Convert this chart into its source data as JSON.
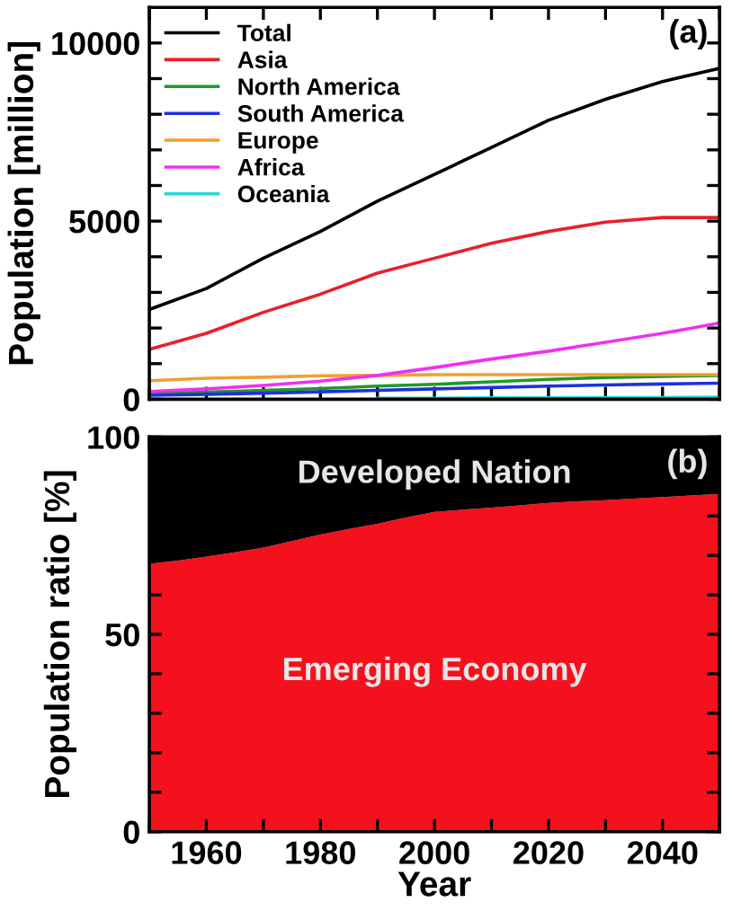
{
  "chart_data": [
    {
      "type": "line",
      "ylabel": "Population [million]",
      "annotations": [
        "(a)"
      ],
      "x": [
        1950,
        1960,
        1970,
        1980,
        1990,
        2000,
        2010,
        2020,
        2030,
        2040,
        2050
      ],
      "series": [
        {
          "name": "Total",
          "color": "#000000",
          "values": [
            2520,
            3110,
            3960,
            4710,
            5560,
            6310,
            7070,
            7830,
            8420,
            8920,
            9290
          ]
        },
        {
          "name": "Asia",
          "color": "#e8202a",
          "values": [
            1400,
            1850,
            2440,
            2950,
            3540,
            3960,
            4380,
            4710,
            4970,
            5100,
            5100
          ]
        },
        {
          "name": "North America",
          "color": "#1e9a2c",
          "values": [
            170,
            200,
            250,
            300,
            370,
            420,
            490,
            560,
            610,
            640,
            670
          ]
        },
        {
          "name": "South America",
          "color": "#1f2fe0",
          "values": [
            110,
            140,
            170,
            210,
            250,
            290,
            330,
            370,
            400,
            430,
            450
          ]
        },
        {
          "name": "Europe",
          "color": "#f0a030",
          "values": [
            520,
            590,
            620,
            660,
            670,
            690,
            690,
            690,
            690,
            690,
            690
          ]
        },
        {
          "name": "Africa",
          "color": "#f030f0",
          "values": [
            220,
            290,
            390,
            510,
            670,
            890,
            1130,
            1350,
            1600,
            1850,
            2140
          ]
        },
        {
          "name": "Oceania",
          "color": "#20d8d8",
          "values": [
            null,
            null,
            null,
            null,
            30,
            30,
            40,
            40,
            50,
            50,
            60
          ]
        }
      ],
      "xlim": [
        1950,
        2050
      ],
      "ylim": [
        0,
        11000
      ],
      "xticks": [
        {
          "value": 1950,
          "label": null
        },
        {
          "value": 1960,
          "label": null
        },
        {
          "value": 1970,
          "label": null
        },
        {
          "value": 1980,
          "label": null
        },
        {
          "value": 1990,
          "label": null
        },
        {
          "value": 2000,
          "label": null
        },
        {
          "value": 2010,
          "label": null
        },
        {
          "value": 2020,
          "label": null
        },
        {
          "value": 2030,
          "label": null
        },
        {
          "value": 2040,
          "label": null
        },
        {
          "value": 2050,
          "label": null
        }
      ],
      "yticks": [
        0,
        {
          "value": 1000,
          "label": null
        },
        {
          "value": 2000,
          "label": null
        },
        {
          "value": 3000,
          "label": null
        },
        {
          "value": 4000,
          "label": null
        },
        5000,
        {
          "value": 6000,
          "label": null
        },
        {
          "value": 7000,
          "label": null
        },
        {
          "value": 8000,
          "label": null
        },
        {
          "value": 9000,
          "label": null
        },
        10000
      ],
      "tick_labels": "y",
      "legend": "top left",
      "grid": false
    },
    {
      "type": "area",
      "stacked": true,
      "xlabel": "Year",
      "ylabel": "Population ratio [%]",
      "annotations": [
        "(b)"
      ],
      "x": [
        1950,
        1955,
        1960,
        1965,
        1970,
        1975,
        1980,
        1985,
        1990,
        1995,
        2000,
        2005,
        2010,
        2015,
        2020,
        2025,
        2030,
        2035,
        2040,
        2045,
        2050
      ],
      "series": [
        {
          "name": "Emerging Economy",
          "color": "#f5101e",
          "values": [
            67.9,
            68.7,
            69.7,
            70.8,
            72.0,
            73.6,
            75.3,
            76.7,
            78.0,
            79.6,
            81.0,
            81.6,
            82.1,
            82.7,
            83.3,
            83.7,
            84.0,
            84.4,
            84.8,
            85.2,
            85.6
          ]
        },
        {
          "name": "Developed Nation",
          "color": "#000000",
          "values": [
            32.1,
            31.3,
            30.3,
            29.2,
            28.0,
            26.4,
            24.7,
            23.3,
            22.0,
            20.4,
            19.0,
            18.4,
            17.9,
            17.3,
            16.7,
            16.3,
            16.0,
            15.6,
            15.2,
            14.8,
            14.4
          ]
        }
      ],
      "xlim": [
        1950,
        2050
      ],
      "ylim": [
        0,
        100
      ],
      "xticks": [
        {
          "value": 1950,
          "label": null
        },
        1960,
        {
          "value": 1970,
          "label": null
        },
        1980,
        {
          "value": 1990,
          "label": null
        },
        2000,
        {
          "value": 2010,
          "label": null
        },
        2020,
        {
          "value": 2030,
          "label": null
        },
        2040,
        {
          "value": 2050,
          "label": null
        }
      ],
      "yticks": [
        0,
        {
          "value": 10,
          "label": null
        },
        {
          "value": 20,
          "label": null
        },
        {
          "value": 30,
          "label": null
        },
        {
          "value": 40,
          "label": null
        },
        50,
        {
          "value": 60,
          "label": null
        },
        {
          "value": 70,
          "label": null
        },
        {
          "value": 80,
          "label": null
        },
        {
          "value": 90,
          "label": null
        },
        100
      ],
      "grid": false,
      "legend": false
    }
  ]
}
